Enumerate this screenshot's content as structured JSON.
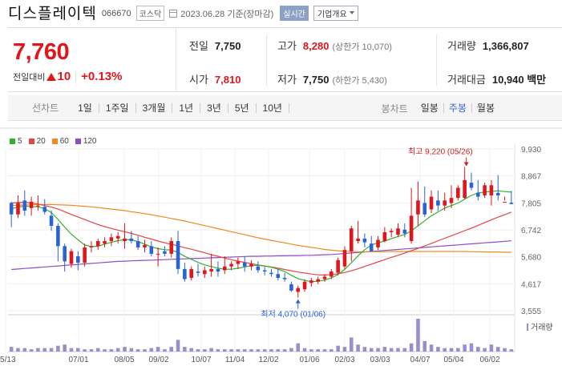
{
  "header": {
    "stock_name": "디스플레이텍",
    "stock_code": "066670",
    "market": "코스닥",
    "date": "2023.06.28 기준(장마감)",
    "realtime": "실시간",
    "overview": "기업개요"
  },
  "quote": {
    "price": "7,760",
    "change_label": "전일대비",
    "change_abs": "10",
    "change_pct": "+0.13%",
    "prev_close_label": "전일",
    "prev_close": "7,750",
    "high_label": "고가",
    "high": "8,280",
    "upper_limit": "(상한가 10,070)",
    "volume_label": "거래량",
    "volume": "1,366,807",
    "open_label": "시가",
    "open": "7,810",
    "low_label": "저가",
    "low": "7,750",
    "lower_limit": "(하한가 5,430)",
    "value_label": "거래대금",
    "value": "10,940 백만"
  },
  "toolbar": {
    "line_label": "선차트",
    "line_periods": [
      "1일",
      "1주일",
      "3개월",
      "1년",
      "3년",
      "5년",
      "10년"
    ],
    "candle_label": "봉차트",
    "candle_periods": [
      "일봉",
      "주봉",
      "월봉"
    ]
  },
  "colors": {
    "up": "#e0161d",
    "down": "#2a63d6",
    "ma5": "#2db42b",
    "ma20": "#e2453f",
    "ma60": "#f0891e",
    "ma120": "#8e4dc2",
    "volume": "#9c8ecb"
  },
  "chart_data": {
    "type": "candlestick",
    "moving_averages": [
      "5",
      "20",
      "60",
      "120"
    ],
    "y_ticks": [
      "9,930",
      "8,867",
      "7,805",
      "6,742",
      "5,680",
      "4,617",
      "3,555"
    ],
    "x_ticks": [
      "05/13",
      "07/01",
      "08/05",
      "09/02",
      "10/07",
      "11/04",
      "12/02",
      "01/06",
      "02/03",
      "03/03",
      "04/07",
      "05/04",
      "06/02"
    ],
    "high_annotation": "최고 9,220 (05/26)",
    "low_annotation": "최저 4,070 (01/06)",
    "volume_label": "거래량",
    "candles": [
      [
        7800,
        7850,
        6850,
        7350
      ],
      [
        7350,
        8100,
        7200,
        7800
      ],
      [
        7900,
        8300,
        7300,
        7500
      ],
      [
        7600,
        8050,
        7300,
        7850
      ],
      [
        7700,
        8100,
        7500,
        7700
      ],
      [
        7650,
        7950,
        7350,
        7450
      ],
      [
        7300,
        7500,
        6700,
        6900
      ],
      [
        6900,
        7000,
        5500,
        6100
      ],
      [
        6100,
        6200,
        5100,
        5500
      ],
      [
        5400,
        6000,
        5250,
        5900
      ],
      [
        5700,
        5900,
        5150,
        5450
      ],
      [
        5450,
        6200,
        5300,
        6050
      ],
      [
        6050,
        6300,
        5850,
        6100
      ],
      [
        6100,
        6400,
        5950,
        6300
      ],
      [
        6200,
        6450,
        6050,
        6300
      ],
      [
        6300,
        6600,
        6100,
        6450
      ],
      [
        6400,
        6650,
        6200,
        6500
      ],
      [
        6300,
        7000,
        6000,
        6400
      ],
      [
        6400,
        6700,
        6200,
        6300
      ],
      [
        6300,
        6500,
        5950,
        6050
      ],
      [
        6050,
        6350,
        5850,
        6150
      ],
      [
        6100,
        6300,
        5700,
        5800
      ],
      [
        5800,
        6050,
        5300,
        5800
      ],
      [
        5900,
        6100,
        5700,
        5800
      ],
      [
        5800,
        6450,
        5650,
        6300
      ],
      [
        6300,
        6700,
        5000,
        5200
      ],
      [
        5200,
        5450,
        4700,
        4800
      ],
      [
        4850,
        5300,
        4750,
        5200
      ],
      [
        5100,
        5400,
        4900,
        5050
      ],
      [
        5000,
        5300,
        4850,
        5150
      ],
      [
        5100,
        5800,
        4900,
        5200
      ],
      [
        5200,
        5500,
        4900,
        5100
      ],
      [
        5150,
        5700,
        5000,
        5300
      ],
      [
        5300,
        5500,
        5150,
        5400
      ],
      [
        5400,
        5650,
        5200,
        5500
      ],
      [
        5450,
        5700,
        5100,
        5300
      ],
      [
        5300,
        5550,
        5150,
        5400
      ],
      [
        5300,
        5500,
        5050,
        5150
      ],
      [
        5150,
        5300,
        4950,
        5100
      ],
      [
        5050,
        5200,
        4900,
        5000
      ],
      [
        5000,
        5200,
        4750,
        4850
      ],
      [
        4850,
        5050,
        4700,
        4800
      ],
      [
        4600,
        4700,
        4300,
        4350
      ],
      [
        4300,
        4550,
        4070,
        4450
      ],
      [
        4400,
        4800,
        4300,
        4700
      ],
      [
        4650,
        4850,
        4500,
        4750
      ],
      [
        4700,
        4900,
        4600,
        4800
      ],
      [
        4800,
        5000,
        4700,
        4900
      ],
      [
        4900,
        5200,
        4800,
        5100
      ],
      [
        5050,
        5650,
        4950,
        5550
      ],
      [
        5300,
        6100,
        5200,
        5950
      ],
      [
        5900,
        6900,
        5500,
        6800
      ],
      [
        6300,
        7100,
        6200,
        6400
      ],
      [
        6400,
        6600,
        6050,
        6250
      ],
      [
        6200,
        6500,
        5900,
        5900
      ],
      [
        6050,
        6500,
        5950,
        6350
      ],
      [
        6300,
        6850,
        6250,
        6650
      ],
      [
        6650,
        6800,
        6450,
        6700
      ],
      [
        6550,
        7000,
        6450,
        6800
      ],
      [
        6750,
        7000,
        6450,
        6600
      ],
      [
        6300,
        8400,
        6200,
        7300
      ],
      [
        7350,
        8650,
        6900,
        7900
      ],
      [
        7800,
        8450,
        7250,
        7350
      ],
      [
        7550,
        8300,
        7400,
        8050
      ],
      [
        7900,
        8300,
        7500,
        7700
      ],
      [
        7700,
        8200,
        7500,
        7900
      ],
      [
        7800,
        8500,
        7600,
        8000
      ],
      [
        8000,
        8500,
        7900,
        8400
      ],
      [
        8000,
        9220,
        7950,
        8700
      ],
      [
        8600,
        9000,
        8300,
        8400
      ],
      [
        8200,
        8700,
        7900,
        8050
      ],
      [
        8100,
        8600,
        8000,
        8500
      ],
      [
        8100,
        8700,
        7700,
        8500
      ],
      [
        8200,
        8900,
        7900,
        8100
      ],
      [
        7850,
        8050,
        7900,
        7850
      ],
      [
        7810,
        8280,
        7750,
        7760
      ]
    ],
    "volumes": [
      4,
      3,
      3,
      2,
      3,
      3,
      3,
      5,
      6,
      3,
      3,
      2,
      2,
      3,
      2,
      2,
      3,
      4,
      3,
      2,
      2,
      3,
      4,
      2,
      4,
      10,
      4,
      3,
      2,
      2,
      3,
      2,
      2,
      2,
      2,
      2,
      2,
      2,
      2,
      2,
      2,
      2,
      3,
      7,
      3,
      2,
      2,
      2,
      2,
      5,
      4,
      12,
      6,
      4,
      3,
      3,
      4,
      3,
      3,
      3,
      7,
      28,
      9,
      6,
      4,
      3,
      3,
      3,
      6,
      7,
      4,
      3,
      6,
      4,
      3,
      2
    ],
    "ma5": [
      7580,
      7640,
      7680,
      7660,
      7650,
      7580,
      7420,
      7150,
      6850,
      6570,
      6350,
      6150,
      6080,
      6100,
      6180,
      6250,
      6320,
      6360,
      6350,
      6280,
      6180,
      6070,
      6000,
      5960,
      5950,
      5850,
      5700,
      5580,
      5460,
      5360,
      5300,
      5230,
      5190,
      5190,
      5230,
      5280,
      5330,
      5350,
      5320,
      5270,
      5190,
      5100,
      4950,
      4820,
      4750,
      4700,
      4720,
      4760,
      4850,
      4980,
      5180,
      5450,
      5720,
      5960,
      6150,
      6230,
      6300,
      6400,
      6480,
      6560,
      6700,
      6900,
      7100,
      7300,
      7450,
      7600,
      7700,
      7800,
      7950,
      8100,
      8200,
      8230,
      8260,
      8280,
      8250,
      8230
    ],
    "ma20": [
      7800,
      7820,
      7830,
      7800,
      7760,
      7700,
      7640,
      7560,
      7460,
      7350,
      7250,
      7150,
      7050,
      6950,
      6870,
      6800,
      6730,
      6670,
      6600,
      6530,
      6450,
      6380,
      6300,
      6230,
      6170,
      6110,
      6040,
      5980,
      5910,
      5840,
      5760,
      5700,
      5630,
      5570,
      5510,
      5460,
      5410,
      5360,
      5320,
      5280,
      5230,
      5180,
      5130,
      5080,
      5040,
      5000,
      4970,
      4960,
      4980,
      5010,
      5060,
      5130,
      5210,
      5300,
      5390,
      5480,
      5570,
      5660,
      5740,
      5830,
      5920,
      6010,
      6110,
      6210,
      6310,
      6410,
      6510,
      6610,
      6710,
      6810,
      6920,
      7030,
      7140,
      7240,
      7340,
      7440
    ],
    "ma60": [
      7700,
      7710,
      7720,
      7730,
      7740,
      7740,
      7740,
      7730,
      7720,
      7710,
      7690,
      7670,
      7650,
      7620,
      7590,
      7560,
      7530,
      7500,
      7460,
      7420,
      7380,
      7340,
      7290,
      7240,
      7190,
      7140,
      7090,
      7030,
      6970,
      6910,
      6850,
      6790,
      6730,
      6670,
      6610,
      6550,
      6490,
      6430,
      6380,
      6330,
      6280,
      6230,
      6180,
      6130,
      6090,
      6050,
      6010,
      5970,
      5940,
      5920,
      5900,
      5890,
      5880,
      5880,
      5880,
      5880,
      5880,
      5890,
      5890,
      5890,
      5890,
      5890,
      5890,
      5890,
      5890,
      5890,
      5890,
      5890,
      5890,
      5880,
      5880,
      5870,
      5870,
      5870,
      5860,
      5860
    ],
    "ma120": [
      5180,
      5200,
      5220,
      5240,
      5260,
      5280,
      5300,
      5320,
      5340,
      5360,
      5380,
      5400,
      5420,
      5440,
      5460,
      5480,
      5500,
      5510,
      5520,
      5530,
      5540,
      5550,
      5560,
      5570,
      5580,
      5590,
      5600,
      5610,
      5620,
      5630,
      5640,
      5650,
      5660,
      5670,
      5680,
      5690,
      5700,
      5700,
      5710,
      5710,
      5720,
      5720,
      5730,
      5730,
      5740,
      5740,
      5750,
      5760,
      5770,
      5790,
      5810,
      5830,
      5850,
      5870,
      5890,
      5910,
      5930,
      5950,
      5970,
      5990,
      6010,
      6030,
      6050,
      6070,
      6090,
      6110,
      6130,
      6150,
      6170,
      6190,
      6210,
      6230,
      6250,
      6270,
      6290,
      6310
    ]
  }
}
